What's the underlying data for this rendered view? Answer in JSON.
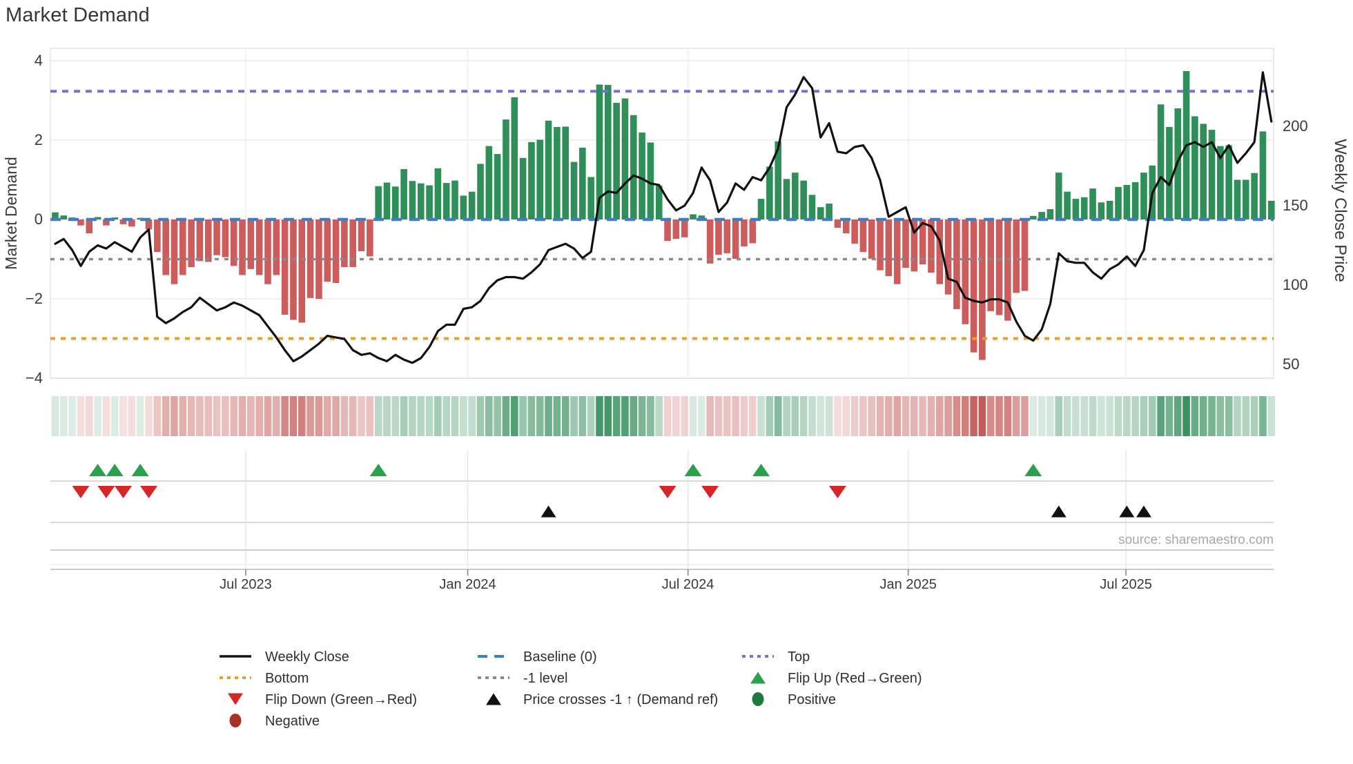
{
  "title": "Market Demand",
  "source": "source: sharemaestro.com",
  "axes": {
    "left_label": "Market Demand",
    "right_label": "Weekly Close Price",
    "left_ticks": [
      4,
      2,
      0,
      -2,
      -4
    ],
    "right_ticks": [
      200,
      150,
      100,
      50
    ],
    "x_tick_labels": [
      "Jul 2023",
      "Jan 2024",
      "Jul 2024",
      "Jan 2025",
      "Jul 2025"
    ],
    "x_tick_weeks": [
      22.4,
      48.5,
      74.4,
      100.3,
      125.9
    ]
  },
  "colors": {
    "bar_positive": "#2e8f58",
    "bar_negative": "#cd5c5c",
    "price_line": "#111111",
    "baseline": "#3b7fc4",
    "top_line": "#7b6fd4",
    "minus1_line": "#8a8a8a",
    "bottom_line": "#ef9b28",
    "flip_up": "#2aa14c",
    "flip_down": "#d62728",
    "price_cross": "#111111",
    "positive_dot": "#1e7a3c",
    "negative_dot": "#a93226",
    "grid": "#e9e9f0",
    "text": "#3a3a3a"
  },
  "chart_data": {
    "type": "bar+line combo (weekly)",
    "title": "Market Demand",
    "x_axis": "weeks from Feb 2023 to Oct 2025",
    "xlabel_ticks": [
      "Jul 2023",
      "Jan 2024",
      "Jul 2024",
      "Jan 2025",
      "Jul 2025"
    ],
    "ylabel_left": "Market Demand",
    "ylabel_right": "Weekly Close Price",
    "ylim_left": [
      -4,
      4.31
    ],
    "ylim_right": [
      41,
      249
    ],
    "reference_lines": {
      "top": 3.23,
      "baseline": 0,
      "minus1": -1,
      "bottom": -3
    },
    "series": [
      {
        "name": "Market Demand (bars)",
        "values": [
          0.18,
          0.1,
          0.05,
          -0.15,
          -0.35,
          0.06,
          -0.15,
          0.05,
          -0.12,
          -0.18,
          0.04,
          -0.25,
          -0.82,
          -1.4,
          -1.63,
          -1.4,
          -1.2,
          -1.05,
          -1.07,
          -0.9,
          -0.95,
          -1.17,
          -1.4,
          -1.25,
          -1.4,
          -1.63,
          -1.4,
          -2.4,
          -2.53,
          -2.6,
          -1.98,
          -2.0,
          -1.57,
          -1.6,
          -1.2,
          -1.2,
          -0.8,
          -0.93,
          0.84,
          0.93,
          0.83,
          1.27,
          0.97,
          0.91,
          0.86,
          1.29,
          0.92,
          0.98,
          0.6,
          0.7,
          1.4,
          1.85,
          1.65,
          2.52,
          3.08,
          1.55,
          1.95,
          2.01,
          2.49,
          2.33,
          2.34,
          1.45,
          1.81,
          1.07,
          3.4,
          3.39,
          2.94,
          3.05,
          2.63,
          2.19,
          1.94,
          0.85,
          -0.54,
          -0.49,
          -0.45,
          0.13,
          0.1,
          -1.11,
          -0.89,
          -0.85,
          -0.99,
          -0.68,
          -0.6,
          0.52,
          1.33,
          1.97,
          1.02,
          1.18,
          0.98,
          0.62,
          0.31,
          0.4,
          -0.21,
          -0.35,
          -0.61,
          -0.82,
          -0.99,
          -1.28,
          -1.43,
          -1.63,
          -1.22,
          -1.31,
          -1.13,
          -1.34,
          -1.63,
          -1.89,
          -2.26,
          -2.64,
          -3.35,
          -3.54,
          -2.31,
          -2.41,
          -2.55,
          -1.85,
          -1.8,
          0.09,
          0.19,
          0.26,
          1.18,
          0.7,
          0.52,
          0.56,
          0.78,
          0.43,
          0.47,
          0.82,
          0.87,
          0.94,
          1.18,
          1.36,
          2.9,
          2.33,
          2.8,
          3.74,
          2.6,
          2.41,
          2.26,
          1.85,
          1.87,
          1.0,
          1.0,
          1.17,
          2.22,
          0.47
        ]
      },
      {
        "name": "Weekly Close (line, right axis)",
        "values": [
          126,
          129,
          122,
          112,
          121,
          125,
          123,
          127,
          124,
          121,
          130,
          135,
          80,
          76,
          79,
          83,
          86,
          92,
          88,
          84,
          86,
          89,
          87,
          84,
          81,
          74,
          67,
          59,
          52,
          55,
          59,
          63,
          68,
          67,
          66,
          59,
          56,
          57,
          54,
          52,
          56,
          53,
          51,
          54,
          61,
          71,
          75,
          75,
          85,
          86,
          90,
          98,
          103,
          105,
          105,
          104,
          108,
          113,
          122,
          124,
          126,
          123,
          117,
          121,
          155,
          159,
          158,
          164,
          169,
          167,
          164,
          163,
          154,
          147,
          150,
          158,
          174,
          166,
          146,
          152,
          164,
          160,
          168,
          166,
          174,
          186,
          212,
          220,
          231,
          224,
          193,
          202,
          184,
          183,
          187,
          188,
          180,
          166,
          143,
          146,
          149,
          133,
          139,
          137,
          128,
          104,
          102,
          92,
          90,
          89,
          91,
          91,
          89,
          77,
          68,
          65,
          72,
          88,
          120,
          115,
          114,
          114,
          108,
          104,
          110,
          113,
          118,
          112,
          122,
          158,
          168,
          163,
          178,
          188,
          190,
          187,
          190,
          180,
          188,
          177,
          183,
          190,
          234,
          203
        ]
      }
    ],
    "markers": {
      "flip_up_weeks": [
        5,
        7,
        10,
        38,
        75,
        83,
        115
      ],
      "flip_down_weeks": [
        3,
        6,
        8,
        11,
        72,
        77,
        92
      ],
      "price_cross_weeks": [
        58,
        118,
        126,
        128
      ]
    },
    "heatmap": "strip below main chart colored by demand value (green positive / red negative, intensity = |value|)",
    "legend_position": "bottom, 3 columns",
    "grid": true
  },
  "legend": {
    "items": [
      {
        "label": "Weekly Close",
        "swatch": "line",
        "color": "#111111",
        "col": 0,
        "row": 0
      },
      {
        "label": "Baseline (0)",
        "swatch": "dashed",
        "color": "#3b7fc4",
        "col": 1,
        "row": 0
      },
      {
        "label": "Top",
        "swatch": "dotted",
        "color": "#7b6fd4",
        "col": 2,
        "row": 0
      },
      {
        "label": "Bottom",
        "swatch": "dotted",
        "color": "#ef9b28",
        "col": 0,
        "row": 1
      },
      {
        "label": "-1 level",
        "swatch": "dotted",
        "color": "#8a8a8a",
        "col": 1,
        "row": 1
      },
      {
        "label": "Flip Up (Red→Green)",
        "swatch": "tri-up",
        "color": "#2aa14c",
        "col": 2,
        "row": 1
      },
      {
        "label": "Flip Down (Green→Red)",
        "swatch": "tri-down",
        "color": "#d62728",
        "col": 0,
        "row": 2
      },
      {
        "label": "Price crosses -1 ↑ (Demand ref)",
        "swatch": "tri-up",
        "color": "#111111",
        "col": 1,
        "row": 2
      },
      {
        "label": "Positive",
        "swatch": "circle",
        "color": "#1e7a3c",
        "col": 2,
        "row": 2
      },
      {
        "label": "Negative",
        "swatch": "circle",
        "color": "#a93226",
        "col": 0,
        "row": 3
      }
    ]
  }
}
